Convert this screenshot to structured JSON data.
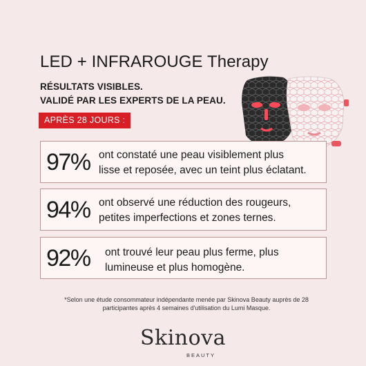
{
  "header": {
    "title": "LED + INFRAROUGE Therapy",
    "subtitle_line1": "RÉSULTATS VISIBLES.",
    "subtitle_line2": "VALIDÉ PAR LES EXPERTS DE LA PEAU.",
    "badge": "APRÈS 28 JOURS :"
  },
  "results": [
    {
      "percent": "97%",
      "line1": "ont constaté une peau visiblement plus",
      "line2": "lisse et reposée, avec un teint plus éclatant."
    },
    {
      "percent": "94%",
      "line1": "ont observé une réduction des rougeurs,",
      "line2": "petites imperfections et zones ternes."
    },
    {
      "percent": "92%",
      "line1": "ont trouvé leur peau plus ferme, plus",
      "line2": "lumineuse et plus homogène."
    }
  ],
  "footnote": {
    "line1": "*Selon une étude consommateur indépendante menée par Skinova Beauty auprès de 28",
    "line2": "participantes après 4 semaines d'utilisation du Lumi Masque."
  },
  "brand": {
    "name": "Skinova",
    "tagline": "BEAUTY"
  },
  "colors": {
    "background": "#f6e9e9",
    "badge": "#d81f26",
    "card": "#fdf6f5",
    "card_border": "#b99696"
  },
  "icons": {
    "masks": "led-face-masks-image"
  }
}
